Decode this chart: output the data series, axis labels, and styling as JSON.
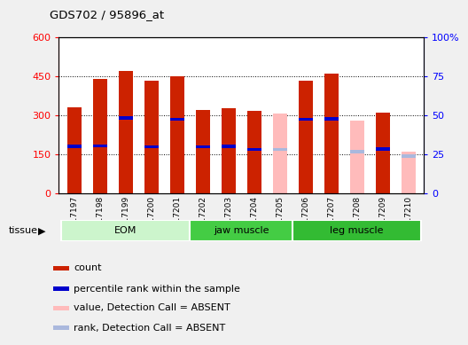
{
  "title": "GDS702 / 95896_at",
  "samples": [
    "GSM17197",
    "GSM17198",
    "GSM17199",
    "GSM17200",
    "GSM17201",
    "GSM17202",
    "GSM17203",
    "GSM17204",
    "GSM17205",
    "GSM17206",
    "GSM17207",
    "GSM17208",
    "GSM17209",
    "GSM17210"
  ],
  "count_values": [
    330,
    440,
    470,
    432,
    447,
    318,
    326,
    315,
    0,
    433,
    460,
    0,
    310,
    0
  ],
  "rank_values": [
    180,
    182,
    288,
    178,
    283,
    178,
    180,
    168,
    0,
    283,
    285,
    0,
    170,
    0
  ],
  "absent_count_values": [
    0,
    0,
    0,
    0,
    0,
    0,
    0,
    0,
    305,
    0,
    0,
    278,
    0,
    158
  ],
  "absent_rank_values": [
    0,
    0,
    0,
    0,
    0,
    0,
    0,
    0,
    168,
    0,
    0,
    160,
    0,
    142
  ],
  "tissue_groups": [
    {
      "name": "EOM",
      "start": 0,
      "end": 4,
      "color": "#c8f5c8"
    },
    {
      "name": "jaw muscle",
      "start": 5,
      "end": 8,
      "color": "#4dde4d"
    },
    {
      "name": "leg muscle",
      "start": 9,
      "end": 13,
      "color": "#4dde4d"
    }
  ],
  "ylim_left": [
    0,
    600
  ],
  "ylim_right": [
    0,
    100
  ],
  "yticks_left": [
    0,
    150,
    300,
    450,
    600
  ],
  "yticks_right": [
    0,
    25,
    50,
    75,
    100
  ],
  "bar_color_present": "#cc2200",
  "bar_color_absent": "#ffbbbb",
  "rank_color_present": "#0000cc",
  "rank_color_absent": "#aab8dd",
  "bar_width": 0.55,
  "bg_color": "#ffffff",
  "tissue_label": "tissue",
  "legend_items": [
    {
      "color": "#cc2200",
      "label": "count"
    },
    {
      "color": "#0000cc",
      "label": "percentile rank within the sample"
    },
    {
      "color": "#ffbbbb",
      "label": "value, Detection Call = ABSENT"
    },
    {
      "color": "#aab8dd",
      "label": "rank, Detection Call = ABSENT"
    }
  ]
}
